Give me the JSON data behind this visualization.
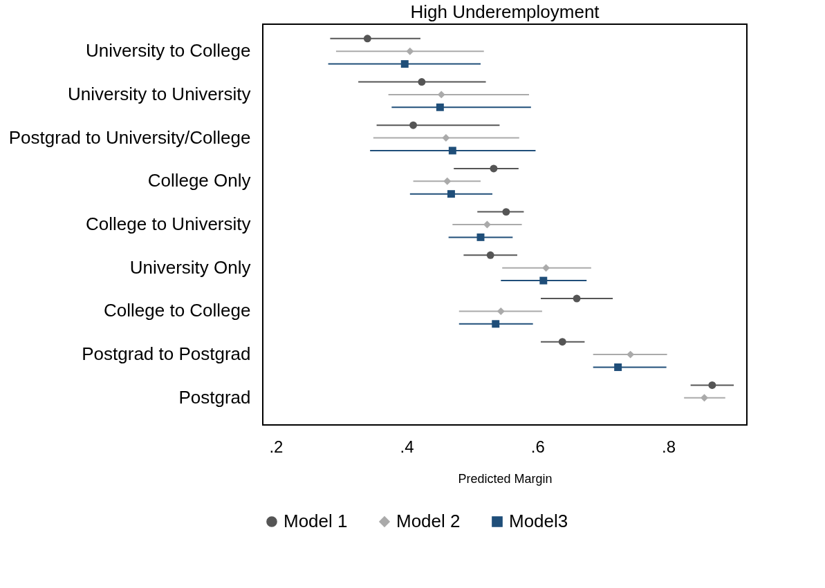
{
  "chart_data": {
    "type": "scatter",
    "title": "High Underemployment",
    "xlabel": "Predicted Margin",
    "categories": [
      "University to College",
      "University to University",
      "Postgrad  to University/College",
      "College Only",
      "College to University",
      "University Only",
      "College to College",
      "Postgrad  to Postgrad",
      "Postgrad"
    ],
    "orientation": "horizontal",
    "xlim": [
      0.18,
      0.92
    ],
    "xticks": [
      {
        "value": 0.2,
        "label": ".2"
      },
      {
        "value": 0.4,
        "label": ".4"
      },
      {
        "value": 0.6,
        "label": ".6"
      },
      {
        "value": 0.8,
        "label": ".8"
      }
    ],
    "grid": false,
    "legend": "bottom",
    "series": [
      {
        "name": "Model 1",
        "color": "#555555",
        "marker": "circle",
        "values": [
          0.34,
          0.423,
          0.41,
          0.533,
          0.552,
          0.528,
          0.66,
          0.638,
          0.867
        ],
        "errors": [
          [
            0.283,
            0.421
          ],
          [
            0.326,
            0.521
          ],
          [
            0.354,
            0.542
          ],
          [
            0.472,
            0.571
          ],
          [
            0.508,
            0.579
          ],
          [
            0.487,
            0.569
          ],
          [
            0.605,
            0.715
          ],
          [
            0.605,
            0.672
          ],
          [
            0.834,
            0.9
          ]
        ]
      },
      {
        "name": "Model 2",
        "color": "#aaaaaa",
        "marker": "diamond",
        "values": [
          0.405,
          0.453,
          0.46,
          0.462,
          0.523,
          0.613,
          0.544,
          0.742,
          0.855
        ],
        "errors": [
          [
            0.292,
            0.518
          ],
          [
            0.372,
            0.587
          ],
          [
            0.349,
            0.572
          ],
          [
            0.41,
            0.513
          ],
          [
            0.47,
            0.576
          ],
          [
            0.546,
            0.682
          ],
          [
            0.48,
            0.607
          ],
          [
            0.685,
            0.798
          ],
          [
            0.824,
            0.887
          ]
        ]
      },
      {
        "name": "Model3",
        "color": "#1f4e79",
        "marker": "square",
        "values": [
          0.397,
          0.451,
          0.47,
          0.468,
          0.513,
          0.609,
          0.536,
          0.723,
          null
        ],
        "errors": [
          [
            0.28,
            0.513
          ],
          [
            0.377,
            0.59
          ],
          [
            0.344,
            0.597
          ],
          [
            0.405,
            0.531
          ],
          [
            0.464,
            0.562
          ],
          [
            0.544,
            0.675
          ],
          [
            0.48,
            0.593
          ],
          [
            0.685,
            0.797
          ],
          null
        ]
      }
    ]
  }
}
